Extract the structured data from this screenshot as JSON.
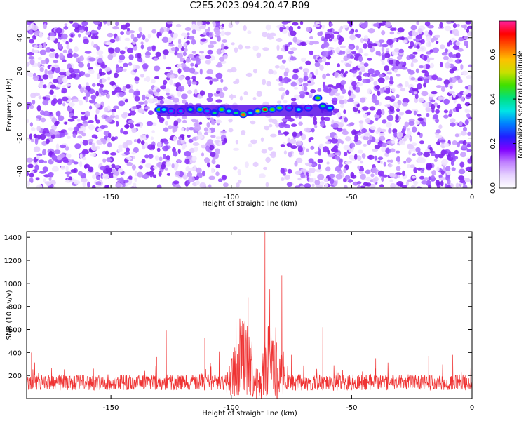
{
  "title": "C2E5.2023.094.20.47.R09",
  "chart_data": [
    {
      "type": "heatmap",
      "xlabel": "Height of straight line (km)",
      "ylabel": "Frequency (Hz)",
      "xlim": [
        -185,
        0
      ],
      "ylim": [
        -50,
        50
      ],
      "xticks": [
        -150,
        -100,
        -50,
        0
      ],
      "yticks": [
        -40,
        -20,
        0,
        20,
        40
      ],
      "colorbar": {
        "label": "Normalized spectral amplitude",
        "range": [
          0,
          0.75
        ],
        "ticks": [
          "0.0",
          "0.2",
          "0.4",
          "0.6"
        ],
        "colors": [
          "#ffffff",
          "#e6d2ff",
          "#c080ff",
          "#8000ff",
          "#2020ff",
          "#0080ff",
          "#00e5e5",
          "#00e080",
          "#40e000",
          "#c8e000",
          "#ffc000",
          "#ff6000",
          "#ff0000",
          "#ff20a0"
        ]
      },
      "bands": [
        {
          "x_from": -102,
          "x_to": -80,
          "description": "low-noise gap"
        }
      ],
      "signal": [
        {
          "x": -130,
          "y": -3,
          "amp": 0.45
        },
        {
          "x": -128,
          "y": -3,
          "amp": 0.35
        },
        {
          "x": -125,
          "y": -4,
          "amp": 0.3
        },
        {
          "x": -121,
          "y": -4,
          "amp": 0.3
        },
        {
          "x": -117,
          "y": -3,
          "amp": 0.4
        },
        {
          "x": -113,
          "y": -3,
          "amp": 0.45
        },
        {
          "x": -110,
          "y": -4,
          "amp": 0.3
        },
        {
          "x": -107,
          "y": -5,
          "amp": 0.4
        },
        {
          "x": -104,
          "y": -3,
          "amp": 0.45
        },
        {
          "x": -101,
          "y": -4,
          "amp": 0.35
        },
        {
          "x": -98,
          "y": -5,
          "amp": 0.4
        },
        {
          "x": -95,
          "y": -6,
          "amp": 0.65
        },
        {
          "x": -92,
          "y": -5,
          "amp": 0.35
        },
        {
          "x": -89,
          "y": -4,
          "amp": 0.5
        },
        {
          "x": -86,
          "y": -3,
          "amp": 0.72
        },
        {
          "x": -83,
          "y": -3,
          "amp": 0.45
        },
        {
          "x": -80,
          "y": -2,
          "amp": 0.45
        },
        {
          "x": -76,
          "y": -2,
          "amp": 0.3
        },
        {
          "x": -72,
          "y": -3,
          "amp": 0.35
        },
        {
          "x": -68,
          "y": -2,
          "amp": 0.3
        },
        {
          "x": -64,
          "y": 4,
          "amp": 0.45
        },
        {
          "x": -62,
          "y": -1,
          "amp": 0.4
        },
        {
          "x": -59,
          "y": -2,
          "amp": 0.35
        }
      ]
    },
    {
      "type": "line",
      "xlabel": "Height of straight line (km)",
      "ylabel": "SNR (10 * v/v)",
      "xlim": [
        -185,
        0
      ],
      "ylim": [
        0,
        1450
      ],
      "xticks": [
        -150,
        -100,
        -50,
        0
      ],
      "yticks": [
        200,
        400,
        600,
        800,
        1000,
        1200,
        1400
      ],
      "color": "#ef3333",
      "baseline": {
        "mean": 140,
        "spread": 70,
        "max_noise": 330
      },
      "envelope": [
        {
          "x": -102,
          "y": 220
        },
        {
          "x": -100,
          "y": 300
        },
        {
          "x": -98,
          "y": 450
        },
        {
          "x": -96,
          "y": 650
        },
        {
          "x": -93,
          "y": 560
        },
        {
          "x": -91,
          "y": 420
        },
        {
          "x": -89,
          "y": 240
        },
        {
          "x": -87,
          "y": 320
        },
        {
          "x": -84,
          "y": 700
        },
        {
          "x": -82,
          "y": 560
        },
        {
          "x": -80,
          "y": 480
        },
        {
          "x": -79,
          "y": 620
        },
        {
          "x": -78,
          "y": 250
        }
      ],
      "peaks": [
        {
          "x": -183,
          "y": 400
        },
        {
          "x": -131,
          "y": 360
        },
        {
          "x": -127,
          "y": 590
        },
        {
          "x": -111,
          "y": 530
        },
        {
          "x": -105,
          "y": 410
        },
        {
          "x": -98,
          "y": 780
        },
        {
          "x": -96,
          "y": 1230
        },
        {
          "x": -93,
          "y": 880
        },
        {
          "x": -86,
          "y": 1460
        },
        {
          "x": -84,
          "y": 950
        },
        {
          "x": -79,
          "y": 1070
        },
        {
          "x": -75,
          "y": 380
        },
        {
          "x": -62,
          "y": 620
        },
        {
          "x": -40,
          "y": 350
        },
        {
          "x": -18,
          "y": 370
        },
        {
          "x": -8,
          "y": 380
        }
      ]
    }
  ]
}
